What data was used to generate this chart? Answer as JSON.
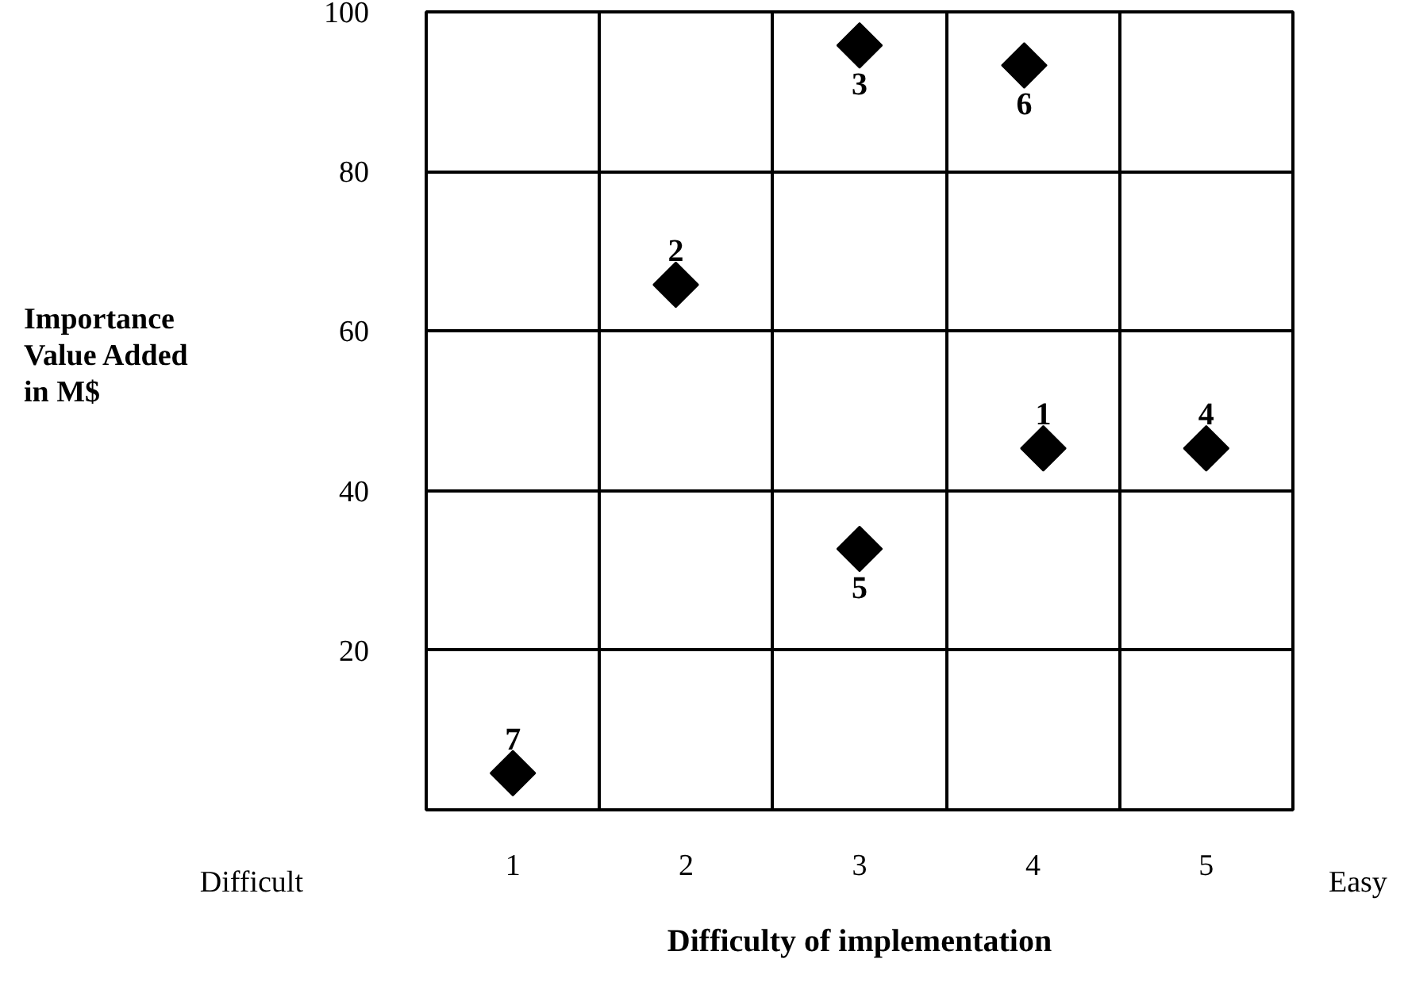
{
  "chart_data": {
    "type": "scatter",
    "xlabel": "Difficulty of implementation",
    "ylabel": "Importance\nValue Added\nin M$",
    "x": [
      4.06,
      1.94,
      3.0,
      5.0,
      3.0,
      3.95,
      1.0
    ],
    "values": [
      45.3,
      65.8,
      95.8,
      45.3,
      32.7,
      93.3,
      4.6
    ],
    "color": "#000000",
    "marker": "diamond",
    "xlim": [
      0.5,
      5.5
    ],
    "ylim": [
      0,
      100
    ],
    "xticks": [
      1,
      2,
      3,
      4,
      5
    ],
    "yticks": [
      20,
      40,
      60,
      80,
      100
    ],
    "grid": true,
    "annotations": [
      {
        "text": "1",
        "x": 4.06,
        "y": 45.3
      },
      {
        "text": "2",
        "x": 1.94,
        "y": 65.8
      },
      {
        "text": "3",
        "x": 3.0,
        "y": 95.8
      },
      {
        "text": "4",
        "x": 5.0,
        "y": 45.3
      },
      {
        "text": "5",
        "x": 3.0,
        "y": 32.7
      },
      {
        "text": "6",
        "x": 3.95,
        "y": 93.3
      },
      {
        "text": "7",
        "x": 1.0,
        "y": 4.6
      },
      "Difficult",
      "Easy"
    ]
  }
}
